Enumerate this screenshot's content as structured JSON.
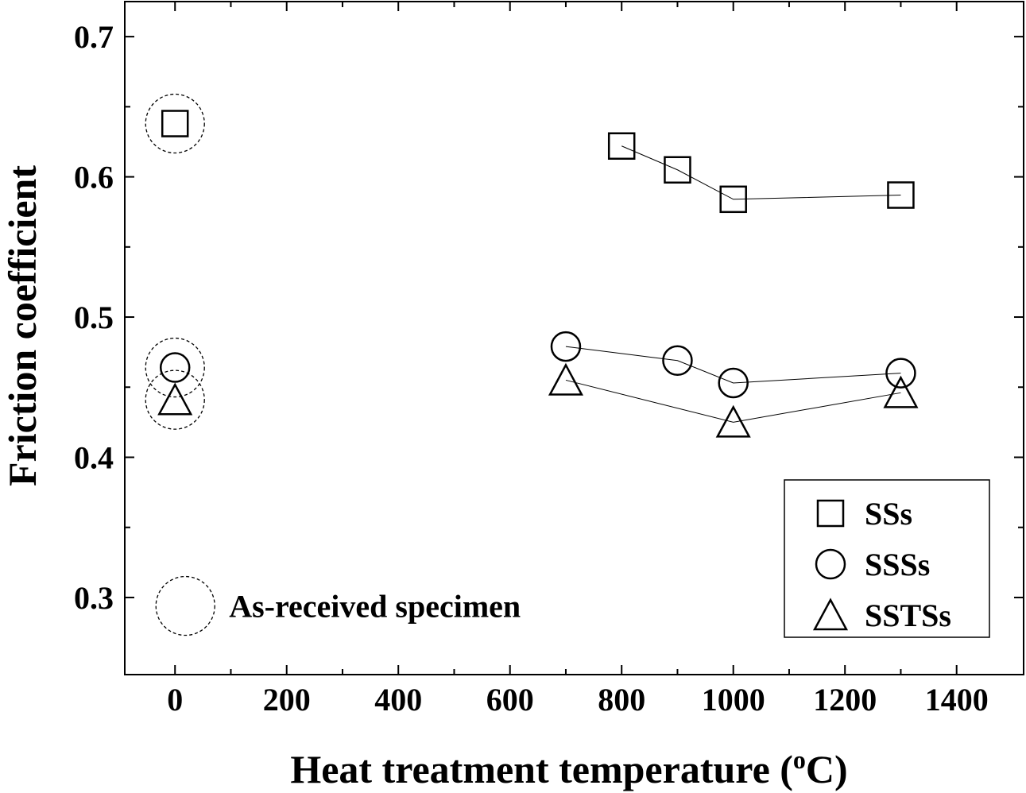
{
  "chart_data": {
    "type": "scatter",
    "xlabel": "Heat treatment temperature (",
    "xlabel_sup": "o",
    "xlabel_suffix": "C)",
    "ylabel": "Friction coefficient",
    "xlim": [
      -90,
      1520
    ],
    "ylim": [
      0.245,
      0.725
    ],
    "x_ticks": [
      0,
      200,
      400,
      600,
      800,
      1000,
      1200,
      1400
    ],
    "x_tick_labels": [
      "0",
      "200",
      "400",
      "600",
      "800",
      "1000",
      "1200",
      "1400"
    ],
    "y_ticks": [
      0.3,
      0.4,
      0.5,
      0.6,
      0.7
    ],
    "y_tick_labels": [
      "0.3",
      "0.4",
      "0.5",
      "0.6",
      "0.7"
    ],
    "x_minor_ticks": [
      100,
      300,
      500,
      700,
      900,
      1100,
      1300
    ],
    "y_minor_ticks": [
      0.35,
      0.45,
      0.55,
      0.65
    ],
    "grid": false,
    "legend_position": "bottom-right",
    "series": [
      {
        "name": "SSs",
        "marker": "square",
        "as_received": 0.638,
        "x": [
          800,
          900,
          1000,
          1300
        ],
        "y": [
          0.622,
          0.605,
          0.584,
          0.587
        ]
      },
      {
        "name": "SSSs",
        "marker": "circle",
        "as_received": 0.464,
        "x": [
          700,
          900,
          1000,
          1300
        ],
        "y": [
          0.479,
          0.469,
          0.453,
          0.46
        ]
      },
      {
        "name": "SSTSs",
        "marker": "triangle",
        "as_received": 0.441,
        "x": [
          700,
          1000,
          1300
        ],
        "y": [
          0.455,
          0.425,
          0.446
        ]
      }
    ],
    "as_received_x": 0,
    "annotation": {
      "text": "As-received specimen",
      "marker": "dashed-circle",
      "x": 0,
      "y": 0.294
    }
  }
}
